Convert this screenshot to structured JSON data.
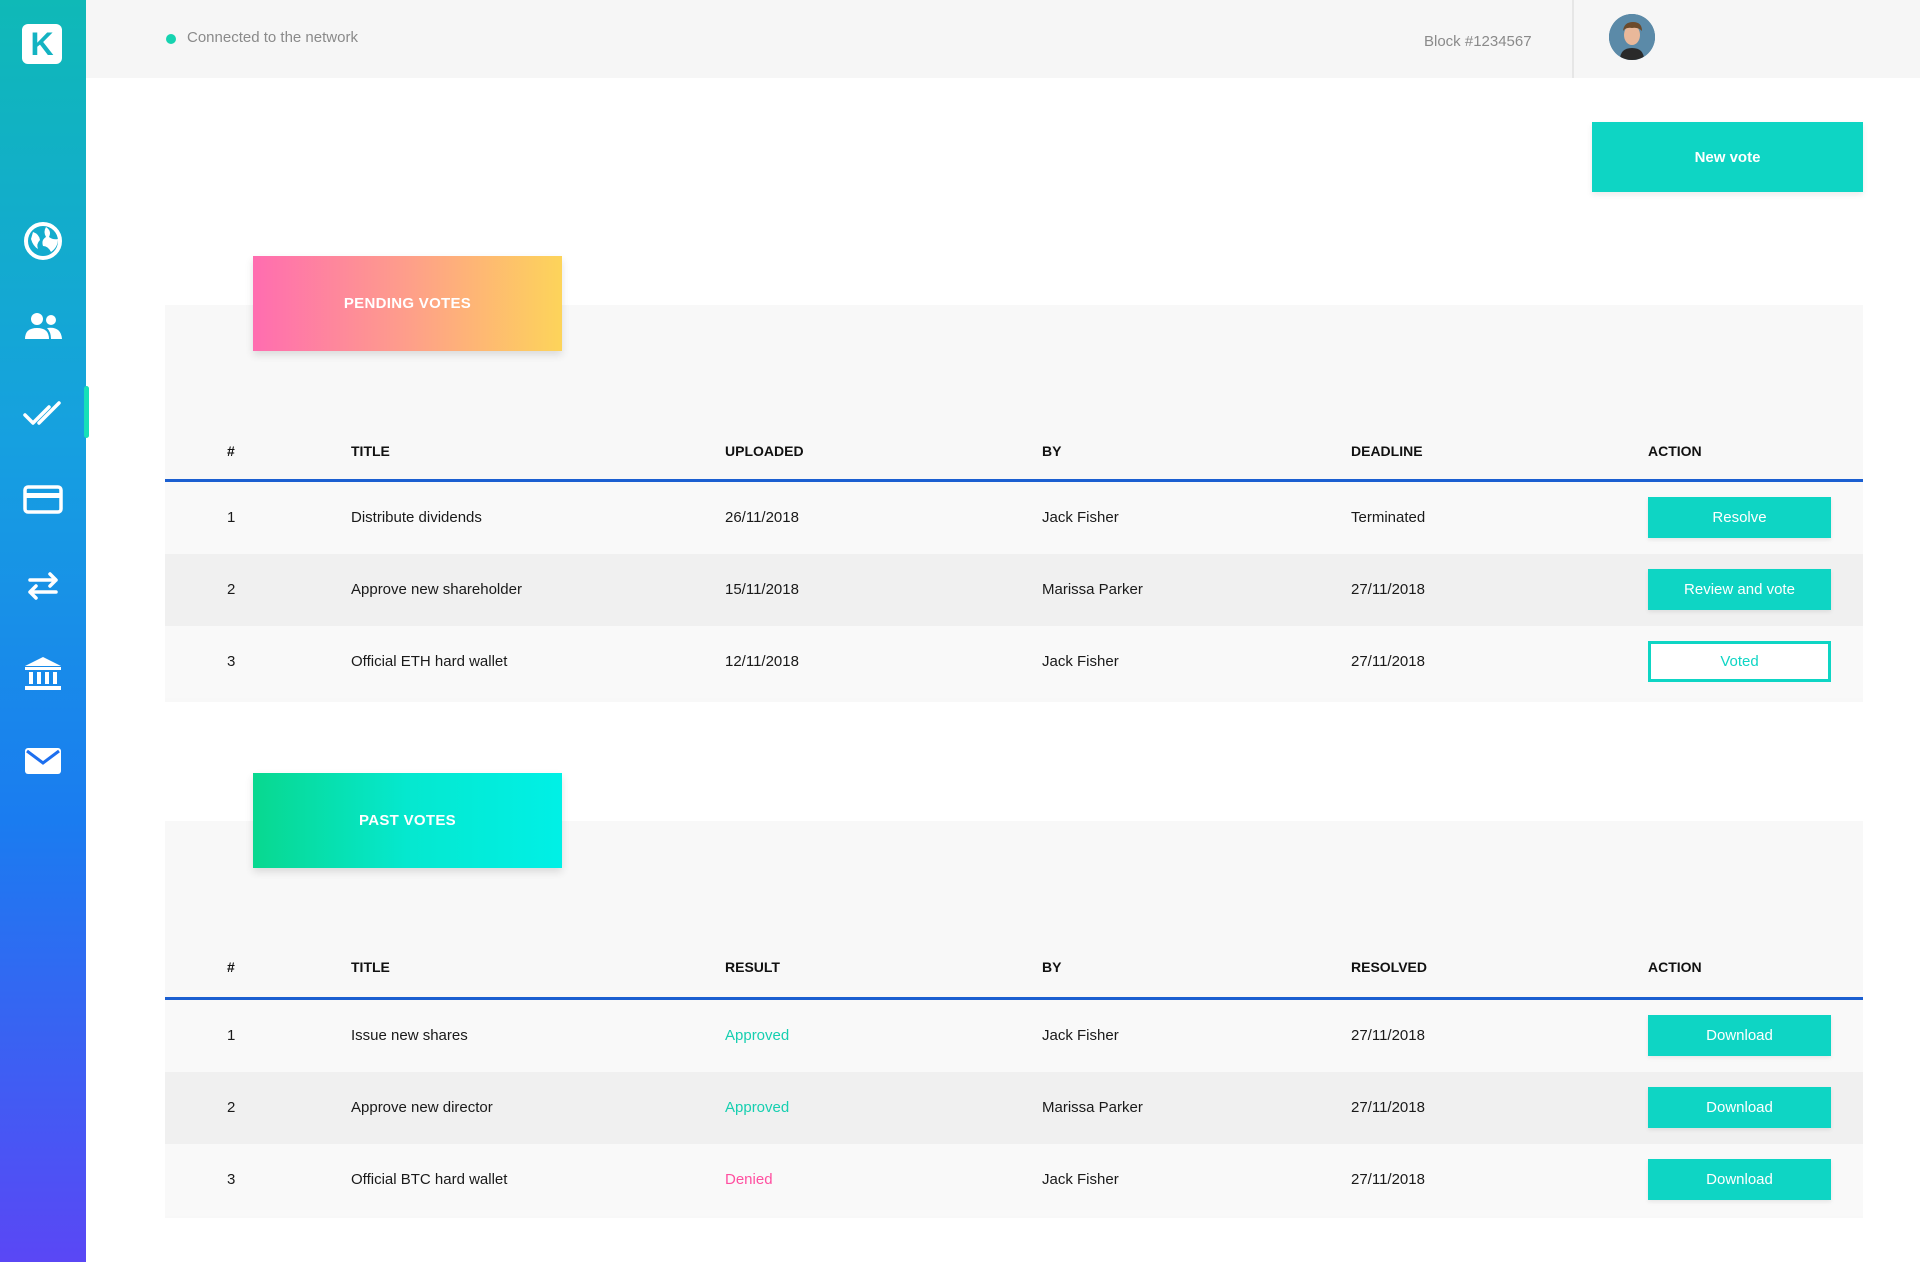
{
  "sidebar": {
    "logo": "K",
    "items": [
      {
        "icon": "globe-icon"
      },
      {
        "icon": "users-icon"
      },
      {
        "icon": "double-check-icon",
        "active": true
      },
      {
        "icon": "credit-card-icon"
      },
      {
        "icon": "transfer-arrows-icon"
      },
      {
        "icon": "bank-icon"
      },
      {
        "icon": "mail-icon"
      }
    ]
  },
  "topbar": {
    "network_status": "Connected to the network",
    "block": "Block #1234567"
  },
  "new_vote_label": "New vote",
  "pending": {
    "title": "PENDING VOTES",
    "headers": [
      "#",
      "TITLE",
      "UPLOADED",
      "BY",
      "DEADLINE",
      "ACTION"
    ],
    "rows": [
      {
        "num": "1",
        "title": "Distribute dividends",
        "uploaded": "26/11/2018",
        "by": "Jack Fisher",
        "deadline": "Terminated",
        "action": "Resolve"
      },
      {
        "num": "2",
        "title": "Approve new shareholder",
        "uploaded": "15/11/2018",
        "by": "Marissa Parker",
        "deadline": "27/11/2018",
        "action": "Review and vote"
      },
      {
        "num": "3",
        "title": "Official ETH hard wallet",
        "uploaded": "12/11/2018",
        "by": "Jack Fisher",
        "deadline": "27/11/2018",
        "action": "Voted"
      }
    ]
  },
  "past": {
    "title": "PAST VOTES",
    "headers": [
      "#",
      "TITLE",
      "RESULT",
      "BY",
      "RESOLVED",
      "ACTION"
    ],
    "rows": [
      {
        "num": "1",
        "title": "Issue new shares",
        "result": "Approved",
        "by": "Jack Fisher",
        "resolved": "27/11/2018",
        "action": "Download"
      },
      {
        "num": "2",
        "title": "Approve new director",
        "result": "Approved",
        "by": "Marissa Parker",
        "resolved": "27/11/2018",
        "action": "Download"
      },
      {
        "num": "3",
        "title": "Official BTC hard wallet",
        "result": "Denied",
        "by": "Jack Fisher",
        "resolved": "27/11/2018",
        "action": "Download"
      }
    ]
  },
  "colors": {
    "accent": "#0ed5c4",
    "approved": "#16cfb0",
    "denied": "#ff4fa0",
    "table_rule": "#1b5fd1"
  }
}
